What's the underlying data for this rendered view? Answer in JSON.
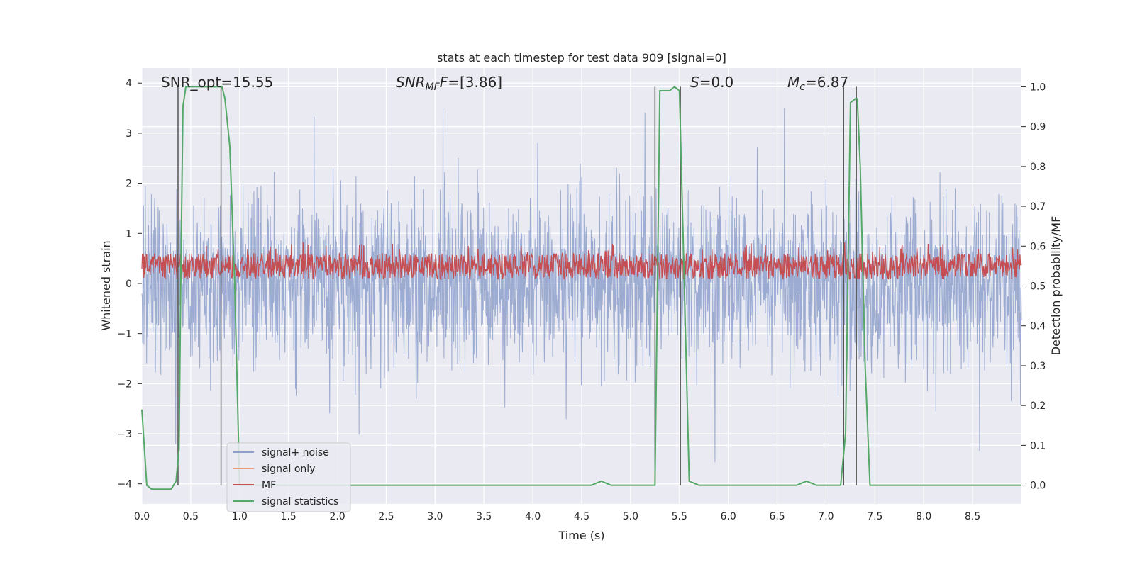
{
  "chart_data": {
    "type": "line",
    "title": "stats at each timestep for test data 909 [signal=0]",
    "xlabel": "Time (s)",
    "ylabel_left": "Whitened strain",
    "ylabel_right": "Detection probability/MF",
    "xlim": [
      0.0,
      9.0
    ],
    "ylim_left": [
      -4.4,
      4.3
    ],
    "ylim_right": [
      -0.047,
      1.047
    ],
    "x_ticks": [
      "0.0",
      "0.5",
      "1.0",
      "1.5",
      "2.0",
      "2.5",
      "3.0",
      "3.5",
      "4.0",
      "4.5",
      "5.0",
      "5.5",
      "6.0",
      "6.5",
      "7.0",
      "7.5",
      "8.0",
      "8.5"
    ],
    "y_ticks_left": [
      "4",
      "3",
      "2",
      "1",
      "0",
      "−1",
      "−2",
      "−3",
      "−4"
    ],
    "y_ticks_right": [
      "1.0",
      "0.9",
      "0.8",
      "0.7",
      "0.6",
      "0.5",
      "0.4",
      "0.3",
      "0.2",
      "0.1",
      "0.0"
    ],
    "grid": true,
    "legend_position": "lower-left",
    "annotations": {
      "snr_opt": "SNR_opt=15.55",
      "snr_mf_sym": "SNR",
      "snr_mf_sub": "MF",
      "snr_mf_val": "=[3.86]",
      "s_sym": "S",
      "s_val": "=0.0",
      "mc_sym": "M",
      "mc_sub": "c",
      "mc_val": "=6.87"
    },
    "series": [
      {
        "name": "signal+ noise",
        "color": "#8da0cb",
        "axis": "left",
        "kind": "noise",
        "amplitude_approx": 3.5
      },
      {
        "name": "signal only",
        "color": "#e8a07c",
        "axis": "left",
        "values": []
      },
      {
        "name": "MF",
        "color": "#c44e52",
        "axis": "right",
        "kind": "band",
        "range_approx": [
          0.5,
          0.61
        ]
      },
      {
        "name": "signal statistics",
        "color": "#55a868",
        "axis": "right",
        "x": [
          0.0,
          0.05,
          0.1,
          0.15,
          0.2,
          0.25,
          0.3,
          0.35,
          0.38,
          0.4,
          0.42,
          0.45,
          0.5,
          0.6,
          0.7,
          0.8,
          0.82,
          0.85,
          0.9,
          0.95,
          1.0,
          1.5,
          2.0,
          3.0,
          4.0,
          4.5,
          4.6,
          4.7,
          4.8,
          5.0,
          5.2,
          5.25,
          5.3,
          5.4,
          5.45,
          5.5,
          5.55,
          5.6,
          5.7,
          6.0,
          6.5,
          6.7,
          6.8,
          6.9,
          7.0,
          7.1,
          7.15,
          7.2,
          7.25,
          7.3,
          7.32,
          7.35,
          7.4,
          7.45,
          7.5,
          8.0,
          8.5,
          9.0
        ],
        "values": [
          0.19,
          0.0,
          -0.01,
          -0.01,
          -0.01,
          -0.01,
          -0.01,
          0.01,
          0.09,
          0.55,
          0.95,
          1.0,
          1.0,
          1.0,
          1.0,
          1.0,
          1.0,
          0.97,
          0.85,
          0.5,
          0.0,
          0.0,
          0.0,
          0.0,
          0.0,
          0.0,
          0.0,
          0.01,
          0.0,
          0.0,
          0.0,
          0.0,
          0.99,
          0.99,
          1.0,
          0.99,
          0.5,
          0.01,
          0.0,
          0.0,
          0.0,
          0.0,
          0.01,
          0.0,
          0.0,
          0.0,
          0.0,
          0.13,
          0.96,
          0.97,
          0.97,
          0.8,
          0.3,
          0.0,
          0.0,
          0.0,
          0.0,
          0.0
        ]
      }
    ],
    "vertical_markers_s": [
      0.37,
      0.81,
      5.25,
      5.51,
      7.18,
      7.31
    ]
  }
}
